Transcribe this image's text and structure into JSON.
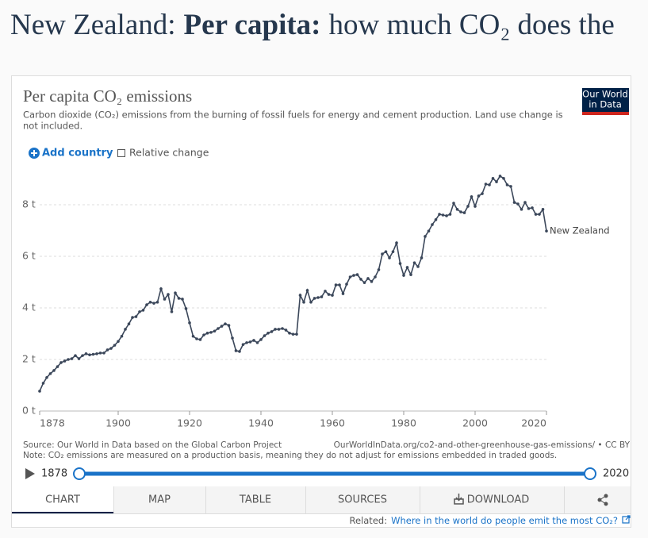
{
  "header": {
    "place": "New Zealand:",
    "topic": "Per capita:",
    "question": "how much CO₂ does the"
  },
  "card": {
    "logo": [
      "Our World",
      "in Data"
    ],
    "controls": {
      "add": "Add country",
      "relative": "Relative change"
    },
    "source": "Source: Our World in Data based on the Global Carbon Project",
    "url": "OurWorldInData.org/co2-and-other-greenhouse-gas-emissions/ • CC BY",
    "note": "Note: CO₂ emissions are measured on a production basis, meaning they do not adjust for emissions embedded in traded goods.",
    "timeline": {
      "start": "1878",
      "end": "2020"
    },
    "tabs": [
      "CHART",
      "MAP",
      "TABLE",
      "SOURCES",
      "DOWNLOAD"
    ],
    "related": {
      "label": "Related:",
      "link": "Where in the world do people emit the most CO₂?"
    }
  },
  "chart_data": {
    "type": "line",
    "title": "Per capita CO₂ emissions",
    "subtitle": [
      "Carbon dioxide (CO₂) emissions from the burning of fossil fuels for energy and cement production. Land use change is",
      "not included."
    ],
    "x": [
      1878,
      1879,
      1880,
      1881,
      1882,
      1883,
      1884,
      1885,
      1886,
      1887,
      1888,
      1889,
      1890,
      1891,
      1892,
      1893,
      1894,
      1895,
      1896,
      1897,
      1898,
      1899,
      1900,
      1901,
      1902,
      1903,
      1904,
      1905,
      1906,
      1907,
      1908,
      1909,
      1910,
      1911,
      1912,
      1913,
      1914,
      1915,
      1916,
      1917,
      1918,
      1919,
      1920,
      1921,
      1922,
      1923,
      1924,
      1925,
      1926,
      1927,
      1928,
      1929,
      1930,
      1931,
      1932,
      1933,
      1934,
      1935,
      1936,
      1937,
      1938,
      1939,
      1940,
      1941,
      1942,
      1943,
      1944,
      1945,
      1946,
      1947,
      1948,
      1949,
      1950,
      1951,
      1952,
      1953,
      1954,
      1955,
      1956,
      1957,
      1958,
      1959,
      1960,
      1961,
      1962,
      1963,
      1964,
      1965,
      1966,
      1967,
      1968,
      1969,
      1970,
      1971,
      1972,
      1973,
      1974,
      1975,
      1976,
      1977,
      1978,
      1979,
      1980,
      1981,
      1982,
      1983,
      1984,
      1985,
      1986,
      1987,
      1988,
      1989,
      1990,
      1991,
      1992,
      1993,
      1994,
      1995,
      1996,
      1997,
      1998,
      1999,
      2000,
      2001,
      2002,
      2003,
      2004,
      2005,
      2006,
      2007,
      2008,
      2009,
      2010,
      2011,
      2012,
      2013,
      2014,
      2015,
      2016,
      2017,
      2018,
      2019,
      2020
    ],
    "series": [
      {
        "name": "New Zealand",
        "color": "#3b475a",
        "values": [
          0.77,
          1.08,
          1.3,
          1.45,
          1.57,
          1.72,
          1.88,
          1.94,
          2.0,
          2.03,
          2.15,
          2.03,
          2.15,
          2.22,
          2.18,
          2.2,
          2.22,
          2.25,
          2.25,
          2.37,
          2.43,
          2.55,
          2.7,
          2.9,
          3.17,
          3.38,
          3.63,
          3.66,
          3.85,
          3.91,
          4.12,
          4.22,
          4.18,
          4.22,
          4.74,
          4.34,
          4.52,
          3.85,
          4.58,
          4.37,
          4.34,
          3.97,
          3.42,
          2.9,
          2.8,
          2.77,
          2.95,
          3.02,
          3.05,
          3.1,
          3.2,
          3.29,
          3.38,
          3.32,
          2.83,
          2.34,
          2.31,
          2.58,
          2.65,
          2.68,
          2.74,
          2.65,
          2.77,
          2.92,
          3.02,
          3.08,
          3.17,
          3.17,
          3.2,
          3.14,
          3.02,
          2.98,
          2.98,
          4.49,
          4.22,
          4.68,
          4.22,
          4.37,
          4.4,
          4.43,
          4.65,
          4.52,
          4.49,
          4.89,
          4.89,
          4.55,
          4.92,
          5.2,
          5.26,
          5.29,
          5.11,
          4.98,
          5.14,
          5.02,
          5.2,
          5.48,
          6.09,
          6.18,
          5.94,
          6.18,
          6.52,
          5.72,
          5.26,
          5.57,
          5.29,
          5.75,
          5.6,
          5.94,
          6.77,
          6.98,
          7.23,
          7.42,
          7.63,
          7.6,
          7.57,
          7.63,
          8.06,
          7.82,
          7.72,
          7.69,
          7.94,
          8.31,
          7.94,
          8.34,
          8.43,
          8.8,
          8.77,
          9.02,
          8.89,
          9.11,
          9.02,
          8.77,
          8.71,
          8.09,
          8.03,
          7.82,
          8.09,
          7.85,
          7.88,
          7.63,
          7.63,
          7.82,
          6.98
        ]
      }
    ],
    "xlim": [
      1878,
      2020
    ],
    "xticks": [
      1878,
      1900,
      1920,
      1940,
      1960,
      1980,
      2000,
      2020
    ],
    "ylim": [
      0,
      9.3
    ],
    "yticks": [
      {
        "value": 0,
        "label": "0 t"
      },
      {
        "value": 2,
        "label": "2 t"
      },
      {
        "value": 4,
        "label": "4 t"
      },
      {
        "value": 6,
        "label": "6 t"
      },
      {
        "value": 8,
        "label": "8 t"
      }
    ],
    "grid": true
  }
}
